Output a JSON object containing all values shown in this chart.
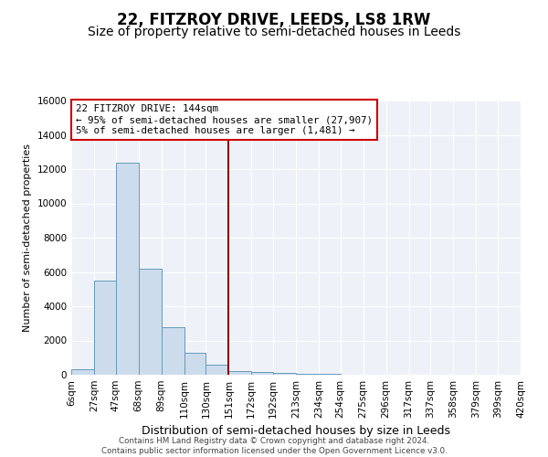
{
  "title": "22, FITZROY DRIVE, LEEDS, LS8 1RW",
  "subtitle": "Size of property relative to semi-detached houses in Leeds",
  "xlabel": "Distribution of semi-detached houses by size in Leeds",
  "ylabel": "Number of semi-detached properties",
  "bin_edges": [
    6,
    27,
    47,
    68,
    89,
    110,
    130,
    151,
    172,
    192,
    213,
    234,
    254,
    275,
    296,
    317,
    337,
    358,
    379,
    399,
    420
  ],
  "bar_heights": [
    300,
    5500,
    12400,
    6200,
    2800,
    1300,
    600,
    200,
    150,
    100,
    50,
    50,
    0,
    0,
    0,
    0,
    0,
    0,
    0,
    0
  ],
  "bar_color": "#ccdcec",
  "bar_edgecolor": "#6699bb",
  "vline_x": 151,
  "vline_color": "#8b0000",
  "ylim": [
    0,
    16000
  ],
  "yticks": [
    0,
    2000,
    4000,
    6000,
    8000,
    10000,
    12000,
    14000,
    16000
  ],
  "annotation_title": "22 FITZROY DRIVE: 144sqm",
  "annotation_line1": "← 95% of semi-detached houses are smaller (27,907)",
  "annotation_line2": "5% of semi-detached houses are larger (1,481) →",
  "annotation_box_facecolor": "#ffffff",
  "annotation_box_edgecolor": "#cc0000",
  "footer_line1": "Contains HM Land Registry data © Crown copyright and database right 2024.",
  "footer_line2": "Contains public sector information licensed under the Open Government Licence v3.0.",
  "background_color": "#ffffff",
  "plot_background": "#eef2f8",
  "title_fontsize": 12,
  "subtitle_fontsize": 10,
  "tick_label_fontsize": 7.5,
  "ylabel_fontsize": 8,
  "xlabel_fontsize": 9
}
